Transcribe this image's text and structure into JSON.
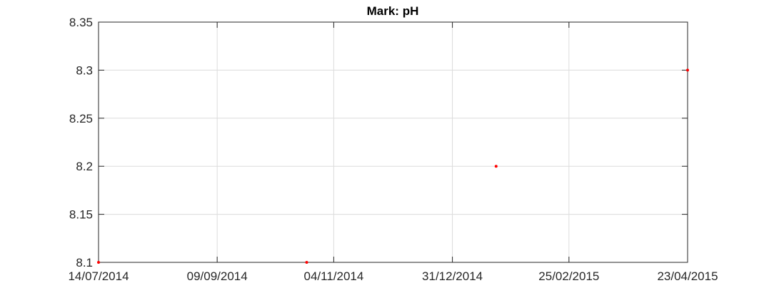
{
  "chart_data": {
    "type": "scatter",
    "title": "Mark: pH",
    "xlabel": "",
    "ylabel": "",
    "x_type": "date",
    "xlim": [
      "2014-07-14",
      "2015-04-23"
    ],
    "ylim": [
      8.1,
      8.35
    ],
    "x_ticks": [
      "2014-07-14",
      "2014-09-09",
      "2014-11-04",
      "2014-12-31",
      "2015-02-25",
      "2015-04-23"
    ],
    "x_tick_labels": [
      "14/07/2014",
      "09/09/2014",
      "04/11/2014",
      "31/12/2014",
      "25/02/2015",
      "23/04/2015"
    ],
    "y_ticks": [
      8.1,
      8.15,
      8.2,
      8.25,
      8.3,
      8.35
    ],
    "y_tick_labels": [
      "8.1",
      "8.15",
      "8.2",
      "8.25",
      "8.3",
      "8.35"
    ],
    "grid": true,
    "legend": "none",
    "marker_color": "#ff0000",
    "points": [
      {
        "x": "2014-07-14",
        "y": 8.1
      },
      {
        "x": "2014-10-22",
        "y": 8.1
      },
      {
        "x": "2015-01-21",
        "y": 8.2
      },
      {
        "x": "2015-04-23",
        "y": 8.3
      }
    ]
  }
}
